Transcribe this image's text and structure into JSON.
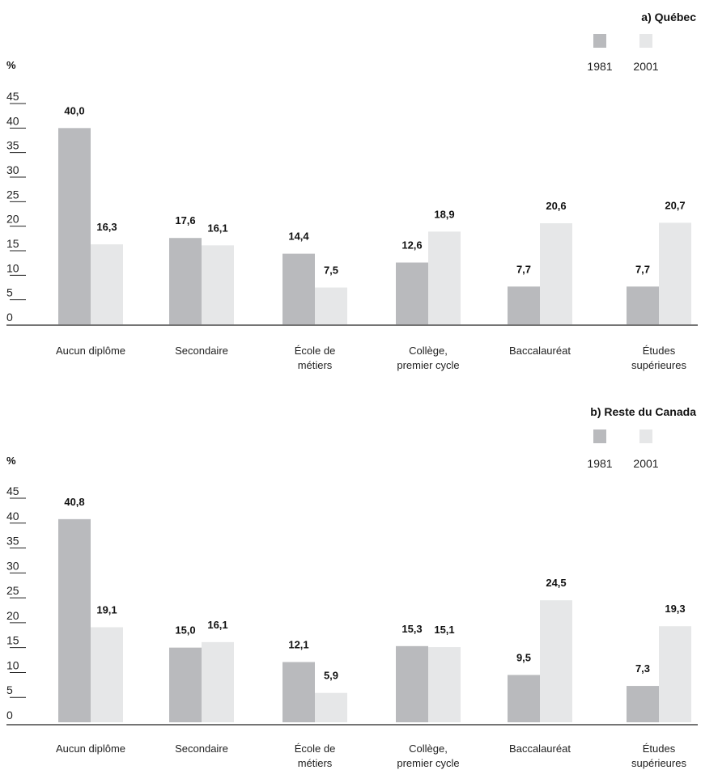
{
  "chart_data": [
    {
      "type": "bar",
      "title": "a) Québec",
      "ylabel": "%",
      "ylim": [
        0,
        45
      ],
      "yticks": [
        "0",
        "5",
        "10",
        "15",
        "20",
        "25",
        "30",
        "35",
        "40",
        "45"
      ],
      "categories": [
        [
          "Aucun diplôme"
        ],
        [
          "Secondaire"
        ],
        [
          "École de",
          "métiers"
        ],
        [
          "Collège,",
          "premier cycle"
        ],
        [
          "Baccalauréat"
        ],
        [
          "Études",
          "supérieures"
        ]
      ],
      "series": [
        {
          "name": "1981",
          "color": "#b9babd",
          "values": [
            40.0,
            17.6,
            14.4,
            12.6,
            7.7,
            7.7
          ],
          "labels": [
            "40,0",
            "17,6",
            "14,4",
            "12,6",
            "7,7",
            "7,7"
          ]
        },
        {
          "name": "2001",
          "color": "#e6e7e8",
          "values": [
            16.3,
            16.1,
            7.5,
            18.9,
            20.6,
            20.7
          ],
          "labels": [
            "16,3",
            "16,1",
            "7,5",
            "18,9",
            "20,6",
            "20,7"
          ]
        }
      ],
      "legend_position": "top-right",
      "grid": false
    },
    {
      "type": "bar",
      "title": "b) Reste du Canada",
      "ylabel": "%",
      "ylim": [
        0,
        45
      ],
      "yticks": [
        "0",
        "5",
        "10",
        "15",
        "20",
        "25",
        "30",
        "35",
        "40",
        "45"
      ],
      "categories": [
        [
          "Aucun diplôme"
        ],
        [
          "Secondaire"
        ],
        [
          "École de",
          "métiers"
        ],
        [
          "Collège,",
          "premier cycle"
        ],
        [
          "Baccalauréat"
        ],
        [
          "Études",
          "supérieures"
        ]
      ],
      "series": [
        {
          "name": "1981",
          "color": "#b9babd",
          "values": [
            40.8,
            15.0,
            12.1,
            15.3,
            9.5,
            7.3
          ],
          "labels": [
            "40,8",
            "15,0",
            "12,1",
            "15,3",
            "9,5",
            "7,3"
          ]
        },
        {
          "name": "2001",
          "color": "#e6e7e8",
          "values": [
            19.1,
            16.1,
            5.9,
            15.1,
            24.5,
            19.3
          ],
          "labels": [
            "19,1",
            "16,1",
            "5,9",
            "15,1",
            "24,5",
            "19,3"
          ]
        }
      ],
      "legend_position": "top-right",
      "grid": false
    }
  ]
}
